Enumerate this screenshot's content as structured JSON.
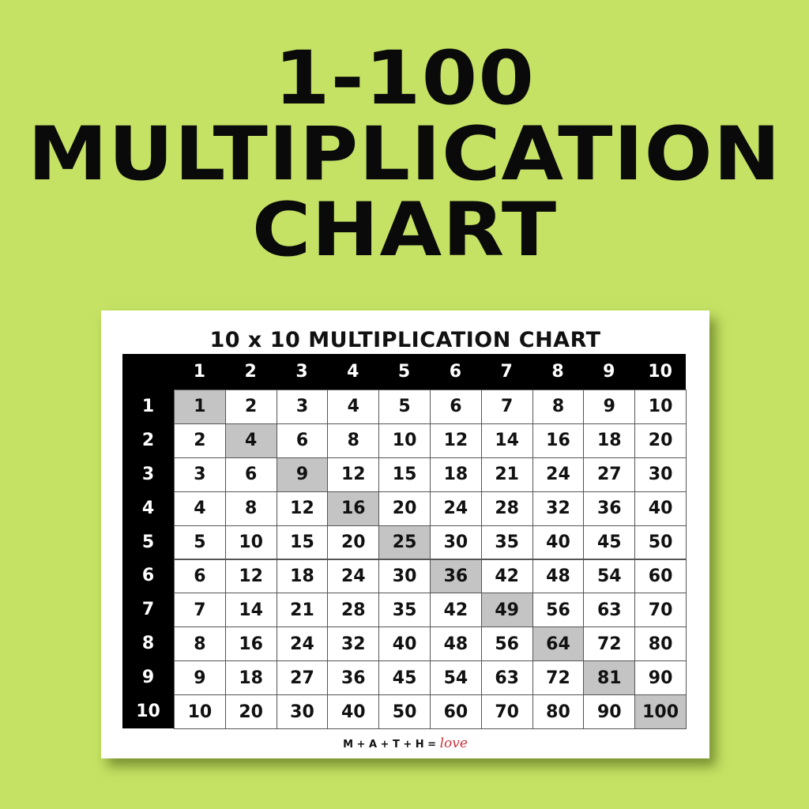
{
  "hero": {
    "lines": [
      "1-100",
      "MULTIPLICATION",
      "CHART"
    ]
  },
  "card": {
    "title": "10 x 10 MULTIPLICATION CHART",
    "footer_prefix": "M + A + T + H =",
    "footer_love": "love"
  },
  "colors": {
    "background": "#c5e264",
    "header": "#000000",
    "diagonal": "#c4c4c4"
  },
  "table": {
    "column_headers": [
      "1",
      "2",
      "3",
      "4",
      "5",
      "6",
      "7",
      "8",
      "9",
      "10"
    ],
    "row_headers": [
      "1",
      "2",
      "3",
      "4",
      "5",
      "6",
      "7",
      "8",
      "9",
      "10"
    ],
    "rows": [
      [
        "1",
        "2",
        "3",
        "4",
        "5",
        "6",
        "7",
        "8",
        "9",
        "10"
      ],
      [
        "2",
        "4",
        "6",
        "8",
        "10",
        "12",
        "14",
        "16",
        "18",
        "20"
      ],
      [
        "3",
        "6",
        "9",
        "12",
        "15",
        "18",
        "21",
        "24",
        "27",
        "30"
      ],
      [
        "4",
        "8",
        "12",
        "16",
        "20",
        "24",
        "28",
        "32",
        "36",
        "40"
      ],
      [
        "5",
        "10",
        "15",
        "20",
        "25",
        "30",
        "35",
        "40",
        "45",
        "50"
      ],
      [
        "6",
        "12",
        "18",
        "24",
        "30",
        "36",
        "42",
        "48",
        "54",
        "60"
      ],
      [
        "7",
        "14",
        "21",
        "28",
        "35",
        "42",
        "49",
        "56",
        "63",
        "70"
      ],
      [
        "8",
        "16",
        "24",
        "32",
        "40",
        "48",
        "56",
        "64",
        "72",
        "80"
      ],
      [
        "9",
        "18",
        "27",
        "36",
        "45",
        "54",
        "63",
        "72",
        "81",
        "90"
      ],
      [
        "10",
        "20",
        "30",
        "40",
        "50",
        "60",
        "70",
        "80",
        "90",
        "100"
      ]
    ],
    "highlight": "diagonal"
  }
}
